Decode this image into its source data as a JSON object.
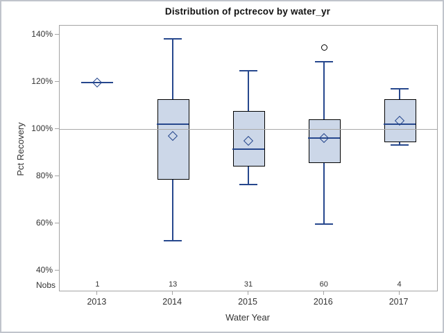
{
  "figure": {
    "title": "Distribution of pctrecov by water_yr"
  },
  "chart_data": {
    "type": "box",
    "title": "Distribution of pctrecov by water_yr",
    "xlabel": "Water Year",
    "ylabel": "Pct Recovery",
    "categories": [
      "2013",
      "2014",
      "2015",
      "2016",
      "2017"
    ],
    "nobs_label": "Nobs",
    "nobs": [
      "1",
      "13",
      "31",
      "60",
      "4"
    ],
    "y_ticks": [
      40,
      60,
      80,
      100,
      120,
      140
    ],
    "y_tick_suffix": "%",
    "ylim": [
      31.4,
      143.7
    ],
    "reference_line": 100,
    "grid": false,
    "legend": "none",
    "boxes": [
      {
        "category": "2013",
        "n": 1,
        "single_value": true,
        "median": 119.5,
        "mean": 119.5,
        "outliers": []
      },
      {
        "category": "2014",
        "n": 13,
        "single_value": false,
        "whisker_low": 52.5,
        "q1": 79,
        "median": 102,
        "q3": 112.5,
        "whisker_high": 138,
        "mean": 97,
        "outliers": []
      },
      {
        "category": "2015",
        "n": 31,
        "single_value": false,
        "whisker_low": 76.5,
        "q1": 84.5,
        "median": 91.5,
        "q3": 107.5,
        "whisker_high": 124.5,
        "mean": 95,
        "outliers": []
      },
      {
        "category": "2016",
        "n": 60,
        "single_value": false,
        "whisker_low": 59.5,
        "q1": 86,
        "median": 96,
        "q3": 104,
        "whisker_high": 128.5,
        "mean": 96,
        "outliers": [
          134.5
        ]
      },
      {
        "category": "2017",
        "n": 4,
        "single_value": false,
        "whisker_low": 93,
        "q1": 95,
        "median": 102,
        "q3": 112.5,
        "whisker_high": 117,
        "mean": 103.5,
        "outliers": []
      }
    ],
    "colors": {
      "box_fill": "#ccd7e8",
      "box_border": "#000000",
      "line": "#26478d",
      "reference_line": "#a8a8a8",
      "frame": "#a3a3a3",
      "text": "#333333",
      "outlier": "#000000"
    }
  }
}
